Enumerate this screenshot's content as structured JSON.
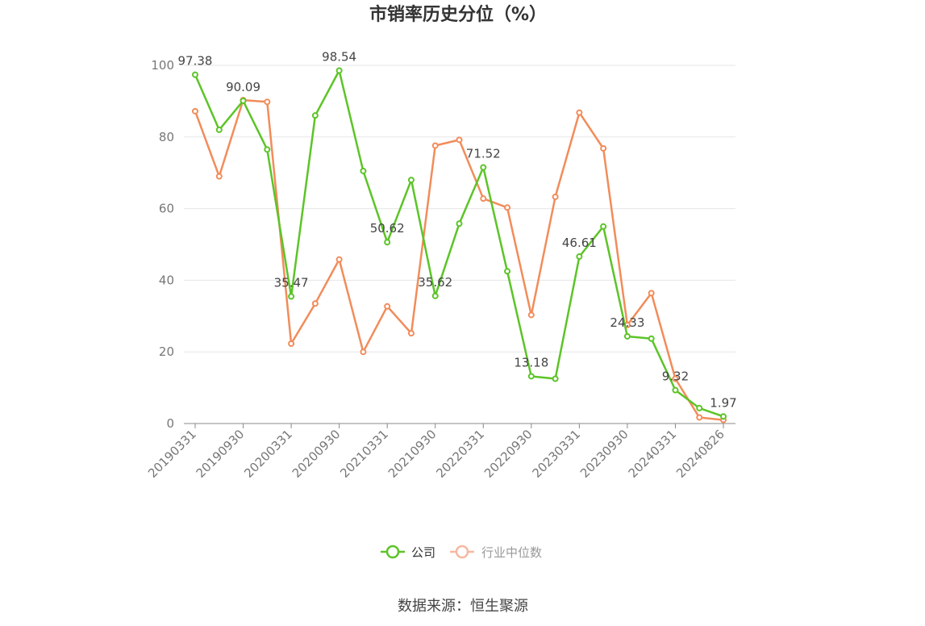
{
  "chart_data": {
    "type": "line",
    "title": "市销率历史分位（%）",
    "source": "数据来源：恒生聚源",
    "ylim": [
      0,
      100
    ],
    "yticks": [
      0,
      20,
      40,
      60,
      80,
      100
    ],
    "x": [
      "20190331",
      "20190630",
      "20190930",
      "20191231",
      "20200331",
      "20200630",
      "20200930",
      "20201231",
      "20210331",
      "20210630",
      "20210930",
      "20211231",
      "20220331",
      "20220630",
      "20220930",
      "20221231",
      "20230331",
      "20230630",
      "20230930",
      "20231231",
      "20240331",
      "20240630",
      "20240826"
    ],
    "xtick_labels": [
      "20190331",
      "20190930",
      "20200331",
      "20200930",
      "20210331",
      "20210930",
      "20220331",
      "20220930",
      "20230331",
      "20230930",
      "20240331",
      "20240826"
    ],
    "legend_position": "bottom",
    "series": [
      {
        "name": "公司",
        "color": "#5cc427",
        "values": [
          97.38,
          82.0,
          90.09,
          76.5,
          35.47,
          86.0,
          98.54,
          70.5,
          50.62,
          68.0,
          35.62,
          55.8,
          71.52,
          42.5,
          13.18,
          12.5,
          46.61,
          55.0,
          24.33,
          23.7,
          9.32,
          4.3,
          1.97
        ],
        "labels": [
          "97.38",
          "",
          "90.09",
          "",
          "35.47",
          "",
          "98.54",
          "",
          "50.62",
          "",
          "35.62",
          "",
          "71.52",
          "",
          "13.18",
          "",
          "46.61",
          "",
          "24.33",
          "",
          "9.32",
          "",
          "1.97"
        ]
      },
      {
        "name": "行业中位数",
        "color": "#f28c5a",
        "legend_color": "#f6b8a0",
        "values": [
          87.2,
          69.0,
          90.3,
          89.8,
          22.3,
          33.5,
          45.8,
          20.0,
          32.7,
          25.2,
          77.6,
          79.2,
          62.8,
          60.3,
          30.3,
          63.3,
          86.8,
          76.8,
          27.5,
          36.4,
          12.5,
          1.7,
          1.0
        ]
      }
    ]
  }
}
